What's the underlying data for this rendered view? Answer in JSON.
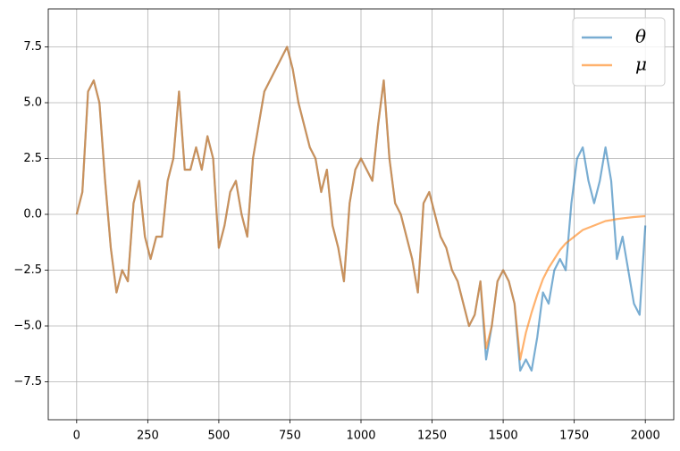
{
  "chart_data": {
    "type": "line",
    "x": [
      0,
      20,
      40,
      60,
      80,
      100,
      120,
      140,
      160,
      180,
      200,
      220,
      240,
      260,
      280,
      300,
      320,
      340,
      360,
      380,
      400,
      420,
      440,
      460,
      480,
      500,
      520,
      540,
      560,
      580,
      600,
      620,
      640,
      660,
      680,
      700,
      720,
      740,
      760,
      780,
      800,
      820,
      840,
      860,
      880,
      900,
      920,
      940,
      960,
      980,
      1000,
      1020,
      1040,
      1060,
      1080,
      1100,
      1120,
      1140,
      1160,
      1180,
      1200,
      1220,
      1240,
      1260,
      1280,
      1300,
      1320,
      1340,
      1360,
      1380,
      1400,
      1420,
      1440,
      1460,
      1480,
      1500,
      1520,
      1540,
      1560,
      1580,
      1600,
      1620,
      1640,
      1660,
      1680,
      1700,
      1720,
      1740,
      1760,
      1780,
      1800,
      1820,
      1840,
      1860,
      1880,
      1900,
      1920,
      1940,
      1960,
      1980,
      2000
    ],
    "series": [
      {
        "name": "θ",
        "color": "#1f77b4",
        "values": [
          0,
          1.0,
          5.5,
          6.0,
          5.0,
          1.5,
          -1.5,
          -3.5,
          -2.5,
          -3.0,
          0.5,
          1.5,
          -1.0,
          -2.0,
          -1.0,
          -1.0,
          1.5,
          2.5,
          5.5,
          2.0,
          2.0,
          3.0,
          2.0,
          3.5,
          2.5,
          -1.5,
          -0.5,
          1.0,
          1.5,
          0.0,
          -1.0,
          2.5,
          4.0,
          5.5,
          6.0,
          6.5,
          7.0,
          7.5,
          6.5,
          5.0,
          4.0,
          3.0,
          2.5,
          1.0,
          2.0,
          -0.5,
          -1.5,
          -3.0,
          0.5,
          2.0,
          2.5,
          2.0,
          1.5,
          4.0,
          6.0,
          2.5,
          0.5,
          0.0,
          -1.0,
          -2.0,
          -3.5,
          0.5,
          1.0,
          0.0,
          -1.0,
          -1.5,
          -2.5,
          -3.0,
          -4.0,
          -5.0,
          -4.5,
          -3.0,
          -6.5,
          -5.0,
          -3.0,
          -2.5,
          -3.0,
          -4.0,
          -7.0,
          -6.5,
          -7.0,
          -5.5,
          -3.5,
          -4.0,
          -2.5,
          -2.0,
          -2.5,
          0.5,
          2.5,
          3.0,
          1.5,
          0.5,
          1.5,
          3.0,
          1.5,
          -2.0,
          -1.0,
          -2.5,
          -4.0,
          -4.5,
          -0.5
        ]
      },
      {
        "name": "μ",
        "color": "#ff7f0e",
        "values": [
          0,
          1.0,
          5.5,
          6.0,
          5.0,
          1.5,
          -1.5,
          -3.5,
          -2.5,
          -3.0,
          0.5,
          1.5,
          -1.0,
          -2.0,
          -1.0,
          -1.0,
          1.5,
          2.5,
          5.5,
          2.0,
          2.0,
          3.0,
          2.0,
          3.5,
          2.5,
          -1.5,
          -0.5,
          1.0,
          1.5,
          0.0,
          -1.0,
          2.5,
          4.0,
          5.5,
          6.0,
          6.5,
          7.0,
          7.5,
          6.5,
          5.0,
          4.0,
          3.0,
          2.5,
          1.0,
          2.0,
          -0.5,
          -1.5,
          -3.0,
          0.5,
          2.0,
          2.5,
          2.0,
          1.5,
          4.0,
          6.0,
          2.5,
          0.5,
          0.0,
          -1.0,
          -2.0,
          -3.5,
          0.5,
          1.0,
          0.0,
          -1.0,
          -1.5,
          -2.5,
          -3.0,
          -4.0,
          -5.0,
          -4.5,
          -3.0,
          -6.0,
          -5.0,
          -3.0,
          -2.5,
          -3.0,
          -4.0,
          -6.5,
          -5.3,
          -4.4,
          -3.6,
          -2.9,
          -2.4,
          -2.0,
          -1.6,
          -1.3,
          -1.1,
          -0.9,
          -0.7,
          -0.6,
          -0.5,
          -0.4,
          -0.3,
          -0.26,
          -0.21,
          -0.18,
          -0.15,
          -0.12,
          -0.1,
          -0.08
        ]
      }
    ],
    "xlim": [
      -100,
      2100
    ],
    "ylim": [
      -9.2,
      9.2
    ],
    "xticks": [
      0,
      250,
      500,
      750,
      1000,
      1250,
      1500,
      1750,
      2000
    ],
    "yticks": [
      {
        "value": -7.5,
        "label": "−7.5"
      },
      {
        "value": -5,
        "label": "−5.0"
      },
      {
        "value": -2.5,
        "label": "−2.5"
      },
      {
        "value": 0,
        "label": "0.0"
      },
      {
        "value": 2.5,
        "label": "2.5"
      },
      {
        "value": 5,
        "label": "5.0"
      },
      {
        "value": 7.5,
        "label": "7.5"
      }
    ],
    "grid": true,
    "legend": "upper right"
  }
}
